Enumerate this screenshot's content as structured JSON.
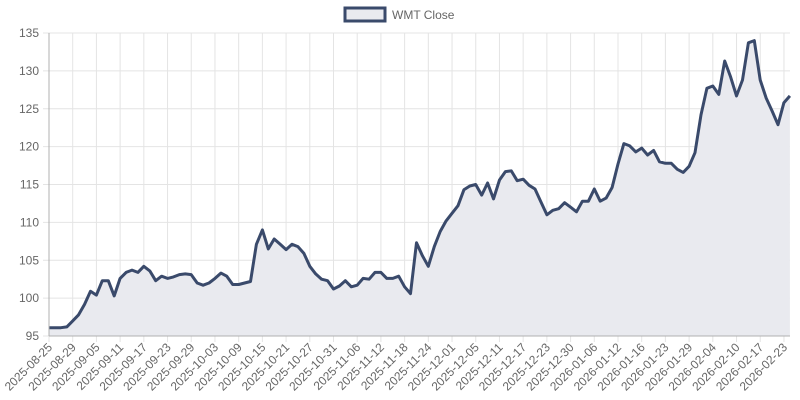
{
  "legend": {
    "label": "WMT Close"
  },
  "colors": {
    "line": "#3a4a6b",
    "fill": "#e9eaef",
    "grid": "#e4e4e4",
    "axis": "#b0b0b0",
    "text": "#666666"
  },
  "chart_data": {
    "type": "area",
    "title": "",
    "xlabel": "",
    "ylabel": "",
    "ylim": [
      95,
      135
    ],
    "yticks": [
      95,
      100,
      105,
      110,
      115,
      120,
      125,
      130,
      135
    ],
    "grid": true,
    "legend_position": "top-center",
    "tick_labels": [
      "2025-08-25",
      "2025-08-29",
      "2025-09-05",
      "2025-09-11",
      "2025-09-17",
      "2025-09-23",
      "2025-09-29",
      "2025-10-03",
      "2025-10-09",
      "2025-10-15",
      "2025-10-21",
      "2025-10-27",
      "2025-10-31",
      "2025-11-06",
      "2025-11-12",
      "2025-11-18",
      "2025-11-24",
      "2025-12-01",
      "2025-12-05",
      "2025-12-11",
      "2025-12-17",
      "2025-12-23",
      "2025-12-30",
      "2026-01-06",
      "2026-01-12",
      "2026-01-16",
      "2026-01-23",
      "2026-01-29",
      "2026-02-04",
      "2026-02-10",
      "2026-02-17",
      "2026-02-23"
    ],
    "tick_every": 4,
    "series": [
      {
        "name": "WMT Close",
        "values": [
          96.1,
          96.1,
          96.1,
          96.2,
          97.0,
          97.8,
          99.2,
          100.9,
          100.4,
          102.3,
          102.3,
          100.3,
          102.6,
          103.4,
          103.7,
          103.4,
          104.2,
          103.6,
          102.3,
          102.9,
          102.6,
          102.8,
          103.1,
          103.2,
          103.1,
          102.0,
          101.7,
          102.0,
          102.6,
          103.3,
          102.9,
          101.8,
          101.8,
          102.0,
          102.2,
          107.1,
          109.0,
          106.5,
          107.8,
          107.1,
          106.4,
          107.1,
          106.8,
          105.9,
          104.2,
          103.2,
          102.5,
          102.3,
          101.2,
          101.6,
          102.3,
          101.5,
          101.7,
          102.6,
          102.5,
          103.4,
          103.4,
          102.6,
          102.6,
          102.9,
          101.5,
          100.6,
          107.3,
          105.6,
          104.2,
          106.8,
          108.8,
          110.2,
          111.2,
          112.2,
          114.3,
          114.8,
          115.0,
          113.6,
          115.2,
          113.1,
          115.6,
          116.7,
          116.8,
          115.5,
          115.7,
          114.9,
          114.4,
          112.7,
          111.0,
          111.6,
          111.8,
          112.6,
          112.0,
          111.4,
          112.8,
          112.8,
          114.4,
          112.8,
          113.2,
          114.6,
          117.7,
          120.4,
          120.1,
          119.3,
          119.8,
          118.9,
          119.5,
          118.0,
          117.8,
          117.8,
          117.0,
          116.6,
          117.4,
          119.2,
          124.2,
          127.7,
          128.0,
          126.9,
          131.3,
          129.2,
          126.7,
          128.8,
          133.7,
          134.0,
          128.8,
          126.4,
          124.7,
          122.9,
          125.8,
          126.7
        ]
      }
    ]
  }
}
